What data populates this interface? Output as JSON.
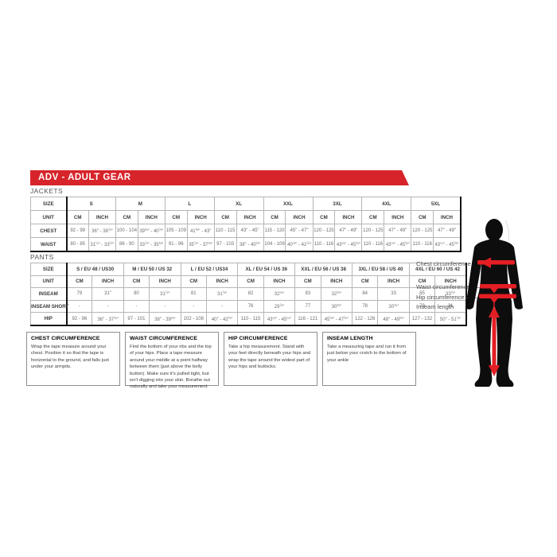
{
  "banner": {
    "title": "ADV - ADULT GEAR"
  },
  "sections": {
    "jackets": "JACKETS",
    "pants": "PANTS"
  },
  "jackets_table": {
    "corner_label": "SIZE",
    "unit_label": "UNIT",
    "cm": "CM",
    "inch": "INCH",
    "sizes": [
      "S",
      "M",
      "L",
      "XL",
      "XXL",
      "3XL",
      "4XL",
      "5XL"
    ],
    "rows": [
      {
        "label": "CHEST",
        "cells": [
          [
            "92 - 99",
            "36\" - 38⅞\""
          ],
          [
            "100 - 104",
            "39⅜\" - 40⅞\""
          ],
          [
            "105 - 109",
            "41⅜\" - 43\""
          ],
          [
            "110 - 115",
            "43\" - 45\""
          ],
          [
            "115 - 120",
            "45\" - 47\""
          ],
          [
            "120 - 125",
            "47\" - 49\""
          ],
          [
            "120 - 125",
            "47\" - 49\""
          ],
          [
            "120 - 125",
            "47\" - 49\""
          ]
        ]
      },
      {
        "label": "WAIST",
        "cells": [
          [
            "80 - 85",
            "31½\" - 33½\""
          ],
          [
            "86 - 90",
            "33⅞\" - 35⅜\""
          ],
          [
            "91 - 96",
            "35⅞\" - 37¾\""
          ],
          [
            "97 - 103",
            "38\" - 40½\""
          ],
          [
            "104 - 109",
            "40⅞\" - 42⅞\""
          ],
          [
            "110 - 116",
            "43¼\" - 45⅝\""
          ],
          [
            "110 - 116",
            "43¼\" - 45⅝\""
          ],
          [
            "110 - 116",
            "43¼\" - 45⅝\""
          ]
        ]
      }
    ]
  },
  "pants_table": {
    "corner_label": "SIZE",
    "unit_label": "UNIT",
    "cm": "CM",
    "inch": "INCH",
    "sizes": [
      "S / EU 48 / US30",
      "M / EU 50 / US 32",
      "L / EU 52 / US34",
      "XL / EU 54 / US 36",
      "XXL / EU 56 / US 38",
      "3XL / EU 58 / US 40",
      "4XL / EU 60 / US 42"
    ],
    "rows": [
      {
        "label": "INSEAM",
        "cells": [
          [
            "79",
            "31\""
          ],
          [
            "80",
            "31½\""
          ],
          [
            "81",
            "31⅞\""
          ],
          [
            "82",
            "32¼\""
          ],
          [
            "83",
            "32⅝\""
          ],
          [
            "84",
            "33"
          ],
          [
            "85",
            "33½\""
          ]
        ]
      },
      {
        "label": "INSEAM SHORT",
        "cells": [
          [
            "-",
            "-"
          ],
          [
            "-",
            "-"
          ],
          [
            "-",
            "-"
          ],
          [
            "76",
            "29⅞\""
          ],
          [
            "77",
            "30⅜\""
          ],
          [
            "78",
            "30¾\""
          ],
          [
            "79",
            "31"
          ]
        ]
      },
      {
        "label": "HIP",
        "cells": [
          [
            "92 - 96",
            "36\" - 37¾\""
          ],
          [
            "97 - 101",
            "38\" - 39¾\""
          ],
          [
            "102 - 108",
            "40\" - 42½\""
          ],
          [
            "110 - 115",
            "43¼\" - 45¼\""
          ],
          [
            "116 - 121",
            "45⅝\" - 47⅝\""
          ],
          [
            "122 - 126",
            "48\" - 49⅝\""
          ],
          [
            "127 - 132",
            "50\" - 51⅞\""
          ]
        ]
      }
    ]
  },
  "figure_labels": {
    "chest": "Chest circumference",
    "waist": "Waist circumference",
    "hip": "Hip circumference",
    "inseam": "Inseam length"
  },
  "info_boxes": [
    {
      "title": "CHEST CIRCUMFERENCE",
      "body": "Wrap the tape measure around your chest. Position it so that the tape is horizontal to the ground, and falls just under your armpits."
    },
    {
      "title": "WAIST CIRCUMFERENCE",
      "body": "Find the bottom of your ribs and the top of your hips. Place a tape measure around your middle at a point halfway between them (just above the belly button). Make sure it's pulled tight, but isn't digging into your skin. Breathe out naturally and take your measurement."
    },
    {
      "title": "HIP CIRCUMFERENCE",
      "body": "Take a hip measurement. Stand with your feet directly beneath your hips and wrap the tape around the widest part of your hips and buttocks."
    },
    {
      "title": "INSEAM LENGTH",
      "body": "Take a measuring tape and run it from just below your crotch to the bottom of your ankle"
    }
  ],
  "colors": {
    "accent_red": "#D7232A",
    "band_red": "#E31E24",
    "silhouette_black": "#0d0d0d",
    "grid_gray": "#b6b6b6",
    "heavy_line": "#141414"
  }
}
